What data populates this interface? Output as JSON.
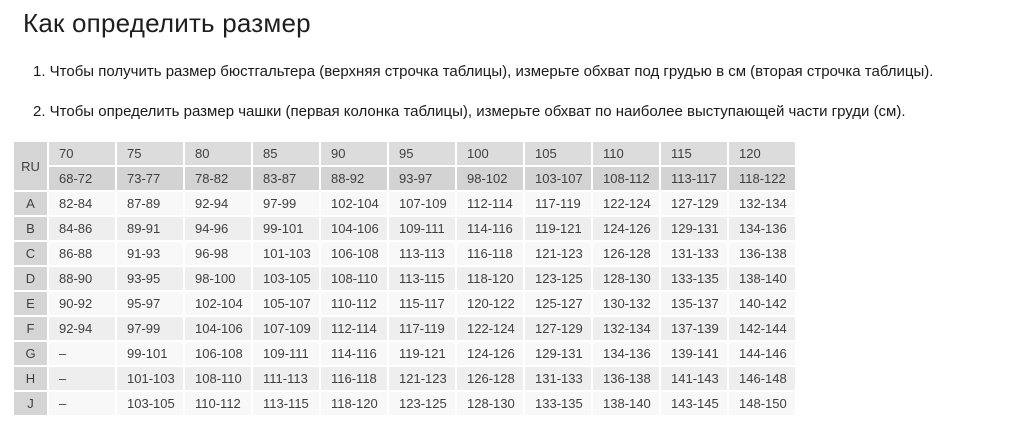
{
  "page": {
    "title": "Как определить размер",
    "instructions": [
      "1. Чтобы получить размер бюстгальтера (верхняя строчка таблицы), измерьте обхват под грудью в см (вторая строчка таблицы).",
      "2. Чтобы определить размер чашки (первая колонка таблицы), измерьте обхват по наиболее выступающей части груди (см)."
    ]
  },
  "table": {
    "corner_label": "RU",
    "band_sizes": [
      "70",
      "75",
      "80",
      "85",
      "90",
      "95",
      "100",
      "105",
      "110",
      "115",
      "120"
    ],
    "underbust_ranges": [
      "68-72",
      "73-77",
      "78-82",
      "83-87",
      "88-92",
      "93-97",
      "98-102",
      "103-107",
      "108-112",
      "113-117",
      "118-122"
    ],
    "rows": [
      {
        "cup": "A",
        "values": [
          "82-84",
          "87-89",
          "92-94",
          "97-99",
          "102-104",
          "107-109",
          "112-114",
          "117-119",
          "122-124",
          "127-129",
          "132-134"
        ]
      },
      {
        "cup": "B",
        "values": [
          "84-86",
          "89-91",
          "94-96",
          "99-101",
          "104-106",
          "109-111",
          "114-116",
          "119-121",
          "124-126",
          "129-131",
          "134-136"
        ]
      },
      {
        "cup": "C",
        "values": [
          "86-88",
          "91-93",
          "96-98",
          "101-103",
          "106-108",
          "113-113",
          "116-118",
          "121-123",
          "126-128",
          "131-133",
          "136-138"
        ]
      },
      {
        "cup": "D",
        "values": [
          "88-90",
          "93-95",
          "98-100",
          "103-105",
          "108-110",
          "113-115",
          "118-120",
          "123-125",
          "128-130",
          "133-135",
          "138-140"
        ]
      },
      {
        "cup": "E",
        "values": [
          "90-92",
          "95-97",
          "102-104",
          "105-107",
          "110-112",
          "115-117",
          "120-122",
          "125-127",
          "130-132",
          "135-137",
          "140-142"
        ]
      },
      {
        "cup": "F",
        "values": [
          "92-94",
          "97-99",
          "104-106",
          "107-109",
          "112-114",
          "117-119",
          "122-124",
          "127-129",
          "132-134",
          "137-139",
          "142-144"
        ]
      },
      {
        "cup": "G",
        "values": [
          "–",
          "99-101",
          "106-108",
          "109-111",
          "114-116",
          "119-121",
          "124-126",
          "129-131",
          "134-136",
          "139-141",
          "144-146"
        ]
      },
      {
        "cup": "H",
        "values": [
          "–",
          "101-103",
          "108-110",
          "111-113",
          "116-118",
          "121-123",
          "126-128",
          "131-133",
          "136-138",
          "141-143",
          "146-148"
        ]
      },
      {
        "cup": "J",
        "values": [
          "–",
          "103-105",
          "110-112",
          "113-115",
          "118-120",
          "123-125",
          "128-130",
          "133-135",
          "138-140",
          "143-145",
          "148-150"
        ]
      }
    ]
  },
  "colors": {
    "header_top_bg": "#dcdcdc",
    "header_sub_bg": "#d3d3d3",
    "label_bg": "#d5d5d5",
    "row_odd_bg": "#f8f8f8",
    "row_even_bg": "#eeeeee",
    "cell_text": "#3f3f3f",
    "title_text": "#1e1e1e",
    "body_text": "#1b1b1b"
  }
}
